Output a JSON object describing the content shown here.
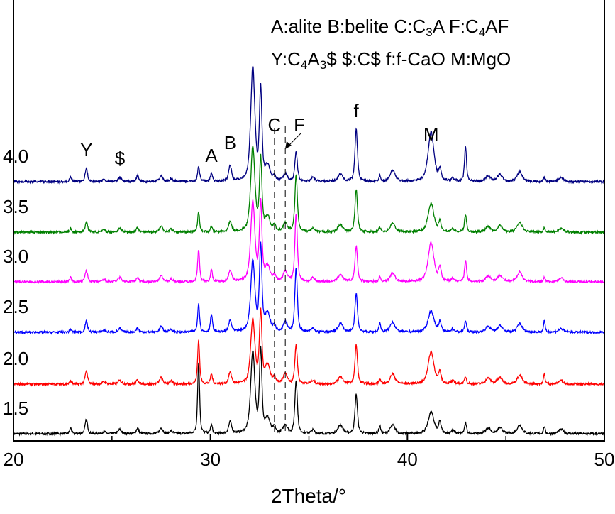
{
  "chart_data": {
    "type": "line",
    "title": "",
    "xlabel": "2Theta/°",
    "ylabel": "",
    "xlim": [
      20,
      50
    ],
    "xticks": [
      20,
      30,
      40,
      50
    ],
    "minor_xticks": [
      25,
      35,
      45
    ],
    "grid": false,
    "legend_lines": [
      [
        {
          "t": "A:alite  B:belite C:C"
        },
        {
          "t": "3",
          "sub": true
        },
        {
          "t": "A F:C"
        },
        {
          "t": "4",
          "sub": true
        },
        {
          "t": "AF"
        }
      ],
      [
        {
          "t": "Y:C"
        },
        {
          "t": "4",
          "sub": true
        },
        {
          "t": "A"
        },
        {
          "t": "3",
          "sub": true
        },
        {
          "t": "$ $:C$ f:f-CaO M:MgO"
        }
      ]
    ],
    "series": [
      {
        "name": "1.5",
        "color": "#000000",
        "offset": 0
      },
      {
        "name": "2.0",
        "color": "#ff0000",
        "offset": 70
      },
      {
        "name": "2.5",
        "color": "#0000ff",
        "offset": 143
      },
      {
        "name": "3.0",
        "color": "#ff00ff",
        "offset": 214
      },
      {
        "name": "3.5",
        "color": "#008000",
        "offset": 284
      },
      {
        "name": "4.0",
        "color": "#000080",
        "offset": 355
      }
    ],
    "peaks_note": "2theta, fwhm, intensities per series [1.5,2.0,2.5,3.0,3.5,4.0] (a.u.)",
    "peaks": [
      [
        22.9,
        0.12,
        [
          8,
          4,
          4,
          6,
          5,
          6
        ]
      ],
      [
        23.7,
        0.15,
        [
          20,
          18,
          15,
          16,
          14,
          18
        ]
      ],
      [
        24.6,
        0.2,
        [
          3,
          3,
          3,
          3,
          3,
          3
        ]
      ],
      [
        25.4,
        0.2,
        [
          6,
          5,
          5,
          6,
          5,
          6
        ]
      ],
      [
        26.3,
        0.15,
        [
          8,
          6,
          6,
          6,
          6,
          8
        ]
      ],
      [
        27.5,
        0.2,
        [
          8,
          9,
          8,
          8,
          8,
          8
        ]
      ],
      [
        28.0,
        0.2,
        [
          4,
          4,
          4,
          4,
          4,
          4
        ]
      ],
      [
        29.4,
        0.12,
        [
          100,
          62,
          40,
          45,
          28,
          22
        ]
      ],
      [
        30.05,
        0.12,
        [
          12,
          14,
          25,
          16,
          8,
          12
        ]
      ],
      [
        31.0,
        0.18,
        [
          16,
          16,
          16,
          16,
          14,
          22
        ]
      ],
      [
        32.15,
        0.25,
        [
          115,
          90,
          100,
          112,
          120,
          160
        ]
      ],
      [
        32.55,
        0.15,
        [
          115,
          100,
          120,
          110,
          100,
          128
        ]
      ],
      [
        32.9,
        0.3,
        [
          20,
          25,
          25,
          20,
          20,
          20
        ]
      ],
      [
        33.25,
        0.15,
        [
          8,
          8,
          8,
          8,
          8,
          6
        ]
      ],
      [
        33.8,
        0.25,
        [
          12,
          14,
          14,
          14,
          12,
          10
        ]
      ],
      [
        34.35,
        0.15,
        [
          75,
          55,
          90,
          95,
          80,
          42
        ]
      ],
      [
        35.2,
        0.2,
        [
          5,
          5,
          5,
          5,
          5,
          6
        ]
      ],
      [
        36.6,
        0.3,
        [
          12,
          10,
          12,
          10,
          10,
          10
        ]
      ],
      [
        37.4,
        0.15,
        [
          55,
          55,
          55,
          50,
          60,
          75
        ]
      ],
      [
        38.6,
        0.12,
        [
          10,
          6,
          12,
          6,
          6,
          8
        ]
      ],
      [
        39.25,
        0.3,
        [
          12,
          14,
          14,
          12,
          12,
          16
        ]
      ],
      [
        41.2,
        0.35,
        [
          30,
          45,
          30,
          55,
          40,
          70
        ]
      ],
      [
        41.65,
        0.15,
        [
          16,
          16,
          14,
          20,
          14,
          16
        ]
      ],
      [
        42.3,
        0.2,
        [
          4,
          4,
          4,
          4,
          4,
          4
        ]
      ],
      [
        42.95,
        0.12,
        [
          15,
          10,
          16,
          30,
          25,
          50
        ]
      ],
      [
        44.1,
        0.3,
        [
          8,
          8,
          8,
          8,
          8,
          8
        ]
      ],
      [
        44.7,
        0.3,
        [
          8,
          9,
          9,
          9,
          9,
          10
        ]
      ],
      [
        45.7,
        0.3,
        [
          12,
          12,
          12,
          14,
          14,
          14
        ]
      ],
      [
        46.95,
        0.1,
        [
          10,
          14,
          16,
          6,
          6,
          6
        ]
      ],
      [
        47.8,
        0.3,
        [
          6,
          5,
          5,
          5,
          5,
          6
        ]
      ]
    ],
    "annotations": [
      {
        "text": "Y",
        "x": 23.7
      },
      {
        "text": "$",
        "x": 25.4
      },
      {
        "text": "A",
        "x": 30.05
      },
      {
        "text": "B",
        "x": 31.0
      },
      {
        "text": "C",
        "x": 33.25
      },
      {
        "text": "F",
        "x": 34.3
      },
      {
        "text": "f",
        "x": 37.4
      },
      {
        "text": "M",
        "x": 41.2
      }
    ],
    "reference_lines": [
      33.25,
      33.8
    ]
  }
}
